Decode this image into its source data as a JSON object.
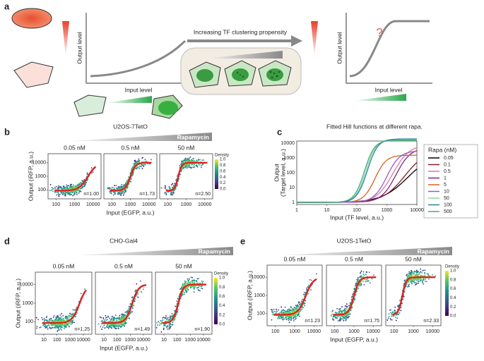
{
  "panel_a": {
    "label": "a",
    "arrow_text": "Increasing TF clustering propensity",
    "left_plot": {
      "y_label": "Output level",
      "x_label": "Input level"
    },
    "right_plot": {
      "y_label": "Output level",
      "x_label": "Input level",
      "question": "?"
    }
  },
  "panel_b": {
    "label": "b",
    "title": "U2OS-7TetO",
    "gradient_label": "Rapamycin",
    "y_label": "Output (iRFP, a.u.)",
    "x_label": "Input (EGFP, a.u.)",
    "conditions": [
      "0.05 nM",
      "0.5 nM",
      "50 nM"
    ],
    "hill_n": [
      "n=1.00",
      "n=1.73",
      "n=2.50"
    ],
    "yticks": [
      "100",
      "1000",
      "10000"
    ],
    "xticks": [
      "100",
      "1000",
      "10000"
    ],
    "colorbar": {
      "title": "Density",
      "ticks": [
        "1.0",
        "0.8",
        "0.6",
        "0.4",
        "0.2",
        "0.0"
      ]
    }
  },
  "panel_c": {
    "label": "c",
    "title": "Fitted Hill functions at different rapa.",
    "y_label": [
      "Output",
      "(Target level, a.u.)"
    ],
    "x_label": "Input (TF level, a.u.)",
    "yticks": [
      "1",
      "10",
      "100",
      "1000",
      "10000"
    ],
    "xticks": [
      "1",
      "10",
      "100",
      "1000",
      "10000"
    ],
    "legend_title": "Rapa (nM)",
    "legend": [
      {
        "name": "0.05",
        "color": "#000000"
      },
      {
        "name": "0.1",
        "color": "#8b1a2a"
      },
      {
        "name": "0.5",
        "color": "#d878b0"
      },
      {
        "name": "1",
        "color": "#7a2a86"
      },
      {
        "name": "5",
        "color": "#d8601c"
      },
      {
        "name": "10",
        "color": "#a058c0"
      },
      {
        "name": "50",
        "color": "#8fd49a"
      },
      {
        "name": "100",
        "color": "#2a7fa8"
      },
      {
        "name": "500",
        "color": "#3fb07a"
      }
    ]
  },
  "panel_d": {
    "label": "d",
    "title": "CHO-Gal4",
    "gradient_label": "Rapamycin",
    "y_label": "Output (iRFP, a.u.)",
    "x_label": "Input (EGFP, a.u.)",
    "conditions": [
      "0.05 nM",
      "0.5 nM",
      "50 nM"
    ],
    "hill_n": [
      "n=1.25",
      "n=1.49",
      "n=1.90"
    ],
    "yticks": [
      "100",
      "1000",
      "10000"
    ],
    "xticks": [
      "10",
      "100",
      "1000",
      "10000"
    ],
    "colorbar": {
      "title": "Density",
      "ticks": [
        "1.0",
        "0.8",
        "0.6",
        "0.4",
        "0.2",
        "0.0"
      ]
    }
  },
  "panel_e": {
    "label": "e",
    "title": "U2OS-1TetO",
    "gradient_label": "Rapamycin",
    "y_label": "Output (iRFP, a.u.)",
    "x_label": "Input (EGFP, a.u.)",
    "conditions": [
      "0.05 nM",
      "0.5 nM",
      "50 nM"
    ],
    "hill_n": [
      "n=1.23",
      "n=1.75",
      "n=2.33"
    ],
    "yticks": [
      "100",
      "1000",
      "10000"
    ],
    "xticks": [
      "100",
      "1000",
      "10000"
    ],
    "colorbar": {
      "title": "Density",
      "ticks": [
        "1.0",
        "0.8",
        "0.6",
        "0.4",
        "0.2",
        "0.0"
      ]
    }
  }
}
